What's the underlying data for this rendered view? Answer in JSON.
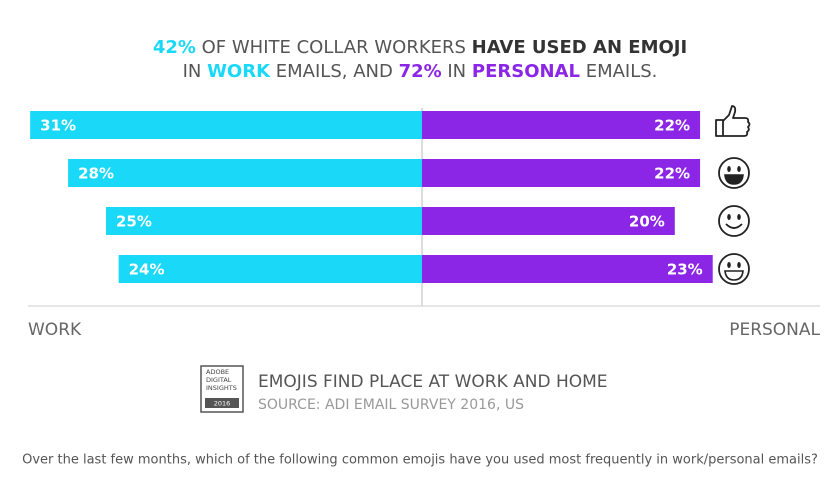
{
  "chart_data": {
    "type": "diverging-bar",
    "title": {
      "line1": [
        {
          "text": "42%",
          "style": "work"
        },
        {
          "text": " OF WHITE COLLAR WORKERS ",
          "style": "plain"
        },
        {
          "text": "HAVE USED AN EMOJI",
          "style": "strong"
        }
      ],
      "line2": [
        {
          "text": "IN ",
          "style": "plain"
        },
        {
          "text": "WORK",
          "style": "work-strong"
        },
        {
          "text": " EMAILS, AND ",
          "style": "plain"
        },
        {
          "text": "72%",
          "style": "personal"
        },
        {
          "text": " IN ",
          "style": "plain"
        },
        {
          "text": "PERSONAL",
          "style": "personal-strong"
        },
        {
          "text": " EMAILS.",
          "style": "plain"
        }
      ]
    },
    "categories": [
      null,
      null,
      null,
      null
    ],
    "series": [
      {
        "name": "WORK",
        "color": "#1ad8f7",
        "values": [
          31,
          28,
          25,
          24
        ],
        "value_labels": [
          "31%",
          "28%",
          "25%",
          "24%"
        ]
      },
      {
        "name": "PERSONAL",
        "color": "#8b26e6",
        "values": [
          22,
          22,
          20,
          23
        ],
        "value_labels": [
          "22%",
          "22%",
          "20%",
          "23%"
        ]
      }
    ],
    "badge": {
      "lines": [
        "ADOBE",
        "DIGITAL",
        "INSIGHTS"
      ],
      "year": "2016"
    },
    "headline": "EMOJIS FIND PLACE AT WORK AND HOME",
    "source": "SOURCE: ADI EMAIL SURVEY 2016, US",
    "question": "Over the last few months, which of the following common emojis have you used most frequently in work/personal emails?"
  }
}
